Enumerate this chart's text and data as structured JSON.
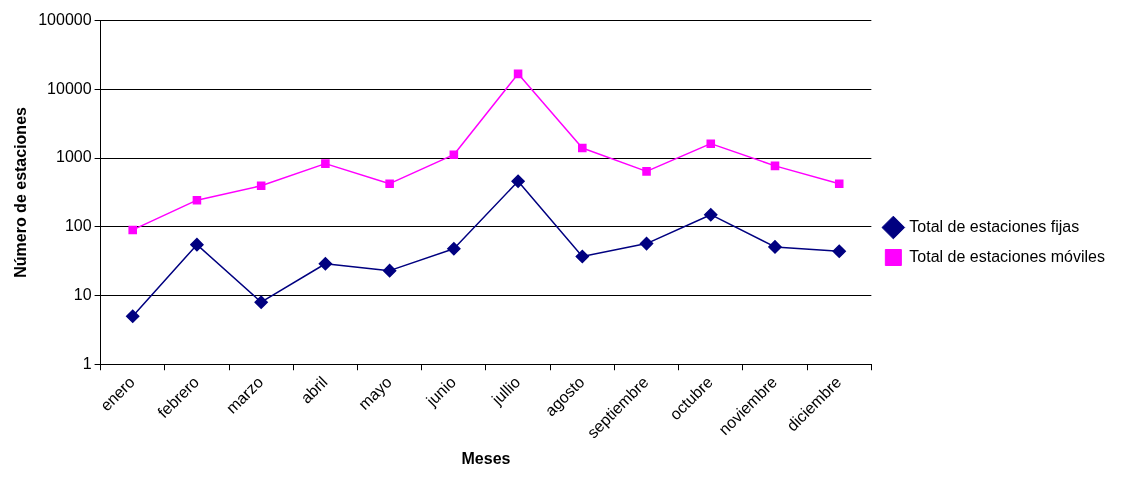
{
  "chart_data": {
    "type": "line",
    "xlabel": "Meses",
    "ylabel": "Número de estaciones",
    "categories": [
      "enero",
      "febrero",
      "marzo",
      "abril",
      "mayo",
      "junio",
      "jullio",
      "agosto",
      "septiembre",
      "octubre",
      "noviembre",
      "diciembre"
    ],
    "series": [
      {
        "name": "Total de estaciones fijas",
        "color": "#000080",
        "marker": "diamond",
        "values": [
          5,
          55,
          8,
          29,
          23,
          48,
          460,
          37,
          57,
          150,
          51,
          44
        ]
      },
      {
        "name": "Total de estaciones móviles",
        "color": "#ff00ff",
        "marker": "square",
        "values": [
          90,
          244,
          395,
          830,
          424,
          1120,
          16800,
          1400,
          640,
          1620,
          770,
          424
        ]
      }
    ],
    "log": "y",
    "ylim": [
      1,
      100000
    ],
    "yticks": [
      1,
      10,
      100,
      1000,
      10000,
      100000
    ],
    "grid": "y",
    "legend": "right"
  }
}
